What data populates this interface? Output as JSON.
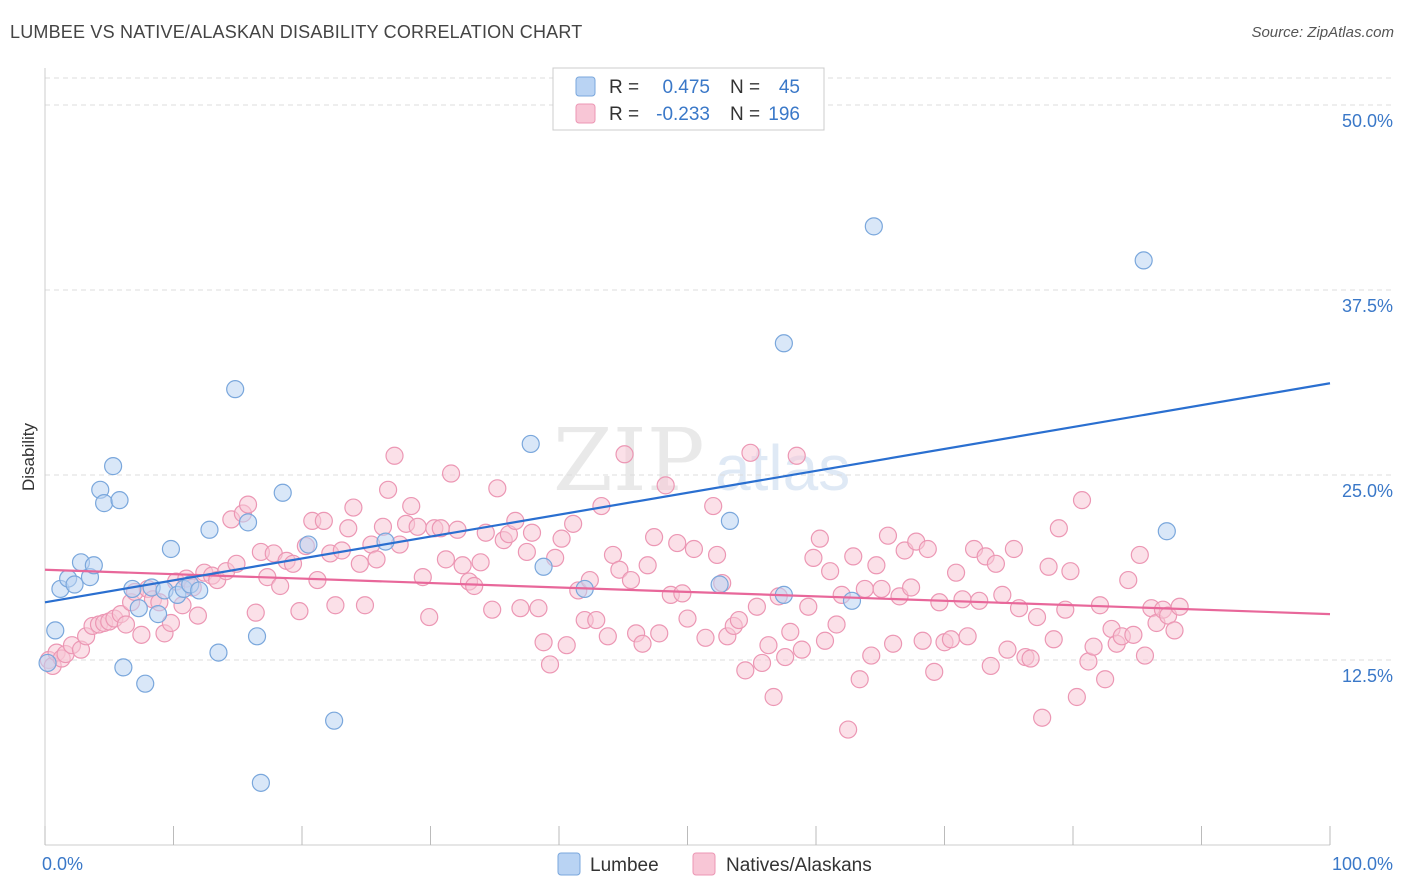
{
  "header": {
    "title": "LUMBEE VS NATIVE/ALASKAN DISABILITY CORRELATION CHART",
    "source": "Source: ZipAtlas.com"
  },
  "watermark": {
    "part1": "ZIP",
    "part2": "atlas"
  },
  "colors": {
    "lumbee_fill": "#b9d3f3",
    "lumbee_stroke": "#7aa7dc",
    "lumbee_line": "#2a6fd0",
    "natives_fill": "#f8c6d6",
    "natives_stroke": "#ec97b4",
    "natives_line": "#e8679a",
    "axis_text": "#3a78c8",
    "grid": "#dddddd"
  },
  "legend": {
    "rows": [
      {
        "r_label": "R =",
        "r_value": "0.475",
        "n_label": "N =",
        "n_value": "45"
      },
      {
        "r_label": "R =",
        "r_value": "-0.233",
        "n_label": "N =",
        "n_value": "196"
      }
    ]
  },
  "bottom_legend": {
    "items": [
      "Lumbee",
      "Natives/Alaskans"
    ]
  },
  "chart_data": {
    "type": "scatter",
    "xlabel": "",
    "ylabel": "Disability",
    "xlim": [
      0,
      100
    ],
    "ylim": [
      0,
      52.5
    ],
    "x_tick_labels": [
      "0.0%",
      "100.0%"
    ],
    "y_ticks": [
      12.5,
      25.0,
      37.5,
      50.0
    ],
    "y_tick_labels": [
      "12.5%",
      "25.0%",
      "37.5%",
      "50.0%"
    ],
    "grid": "horizontal dashed",
    "legend_position": "top-center",
    "series": [
      {
        "name": "Lumbee",
        "trend": {
          "x": [
            0,
            100
          ],
          "y": [
            16.4,
            31.2
          ]
        },
        "points": [
          [
            0.2,
            12.3
          ],
          [
            0.8,
            14.5
          ],
          [
            1.2,
            17.3
          ],
          [
            1.8,
            18.0
          ],
          [
            2.3,
            17.6
          ],
          [
            2.8,
            19.1
          ],
          [
            3.5,
            18.1
          ],
          [
            3.8,
            18.9
          ],
          [
            4.3,
            24.0
          ],
          [
            4.6,
            23.1
          ],
          [
            5.3,
            25.6
          ],
          [
            5.8,
            23.3
          ],
          [
            6.1,
            12.0
          ],
          [
            6.8,
            17.3
          ],
          [
            7.3,
            16.0
          ],
          [
            7.8,
            10.9
          ],
          [
            8.3,
            17.4
          ],
          [
            8.8,
            15.6
          ],
          [
            9.3,
            17.2
          ],
          [
            9.8,
            20.0
          ],
          [
            10.3,
            16.9
          ],
          [
            10.8,
            17.3
          ],
          [
            11.3,
            17.6
          ],
          [
            12.0,
            17.2
          ],
          [
            12.8,
            21.3
          ],
          [
            13.5,
            13.0
          ],
          [
            14.8,
            30.8
          ],
          [
            15.8,
            21.8
          ],
          [
            16.5,
            14.1
          ],
          [
            16.8,
            4.2
          ],
          [
            18.5,
            23.8
          ],
          [
            20.5,
            20.3
          ],
          [
            22.5,
            8.4
          ],
          [
            26.5,
            20.5
          ],
          [
            37.8,
            27.1
          ],
          [
            38.8,
            18.8
          ],
          [
            42.0,
            17.3
          ],
          [
            52.5,
            17.6
          ],
          [
            53.3,
            21.9
          ],
          [
            57.5,
            16.9
          ],
          [
            57.5,
            33.9
          ],
          [
            62.8,
            16.5
          ],
          [
            64.5,
            41.8
          ],
          [
            87.3,
            21.2
          ],
          [
            85.5,
            39.5
          ]
        ]
      },
      {
        "name": "Natives/Alaskans",
        "trend": {
          "x": [
            0,
            100
          ],
          "y": [
            18.6,
            15.6
          ]
        },
        "points": [
          [
            0.3,
            12.5
          ],
          [
            0.6,
            12.1
          ],
          [
            0.9,
            13.0
          ],
          [
            1.3,
            12.6
          ],
          [
            1.6,
            12.9
          ],
          [
            2.1,
            13.5
          ],
          [
            2.8,
            13.2
          ],
          [
            3.2,
            14.1
          ],
          [
            3.7,
            14.8
          ],
          [
            4.2,
            14.9
          ],
          [
            4.6,
            15.0
          ],
          [
            5.0,
            15.1
          ],
          [
            5.4,
            15.3
          ],
          [
            5.9,
            15.6
          ],
          [
            6.3,
            14.9
          ],
          [
            6.7,
            16.4
          ],
          [
            7.0,
            17.1
          ],
          [
            7.5,
            14.2
          ],
          [
            8.0,
            17.3
          ],
          [
            8.4,
            16.6
          ],
          [
            8.9,
            16.4
          ],
          [
            9.3,
            14.3
          ],
          [
            9.8,
            15.0
          ],
          [
            10.2,
            17.8
          ],
          [
            10.7,
            16.2
          ],
          [
            11.0,
            18.0
          ],
          [
            11.5,
            17.4
          ],
          [
            11.9,
            15.5
          ],
          [
            12.4,
            18.4
          ],
          [
            13.0,
            18.2
          ],
          [
            13.4,
            17.9
          ],
          [
            14.1,
            18.5
          ],
          [
            14.5,
            22.0
          ],
          [
            14.9,
            19.0
          ],
          [
            15.4,
            22.4
          ],
          [
            15.8,
            23.0
          ],
          [
            16.4,
            15.7
          ],
          [
            16.8,
            19.8
          ],
          [
            17.3,
            18.1
          ],
          [
            17.8,
            19.7
          ],
          [
            18.3,
            17.5
          ],
          [
            18.8,
            19.2
          ],
          [
            19.3,
            19.0
          ],
          [
            19.8,
            15.8
          ],
          [
            20.3,
            20.2
          ],
          [
            20.8,
            21.9
          ],
          [
            21.2,
            17.9
          ],
          [
            21.7,
            21.9
          ],
          [
            22.2,
            19.7
          ],
          [
            22.6,
            16.2
          ],
          [
            23.1,
            19.9
          ],
          [
            23.6,
            21.4
          ],
          [
            24.0,
            22.8
          ],
          [
            24.5,
            19.0
          ],
          [
            24.9,
            16.2
          ],
          [
            25.4,
            20.3
          ],
          [
            25.8,
            19.3
          ],
          [
            26.3,
            21.5
          ],
          [
            26.7,
            24.0
          ],
          [
            27.2,
            26.3
          ],
          [
            27.6,
            20.3
          ],
          [
            28.1,
            21.7
          ],
          [
            28.5,
            22.9
          ],
          [
            29.0,
            21.5
          ],
          [
            29.4,
            18.1
          ],
          [
            29.9,
            15.4
          ],
          [
            30.3,
            21.4
          ],
          [
            30.8,
            21.4
          ],
          [
            31.2,
            19.3
          ],
          [
            31.6,
            25.1
          ],
          [
            32.1,
            21.3
          ],
          [
            32.5,
            18.9
          ],
          [
            33.0,
            17.8
          ],
          [
            33.4,
            17.5
          ],
          [
            33.9,
            19.1
          ],
          [
            34.3,
            21.1
          ],
          [
            34.8,
            15.9
          ],
          [
            35.2,
            24.1
          ],
          [
            35.7,
            20.6
          ],
          [
            36.1,
            21.0
          ],
          [
            36.6,
            21.9
          ],
          [
            37.0,
            16.0
          ],
          [
            37.5,
            19.8
          ],
          [
            37.9,
            21.1
          ],
          [
            38.4,
            16.0
          ],
          [
            38.8,
            13.7
          ],
          [
            39.3,
            12.2
          ],
          [
            39.7,
            19.4
          ],
          [
            40.2,
            20.7
          ],
          [
            40.6,
            13.5
          ],
          [
            41.1,
            21.7
          ],
          [
            41.5,
            17.2
          ],
          [
            42.0,
            15.2
          ],
          [
            42.4,
            17.9
          ],
          [
            42.9,
            15.2
          ],
          [
            43.3,
            22.9
          ],
          [
            43.8,
            14.1
          ],
          [
            44.2,
            19.6
          ],
          [
            44.7,
            18.6
          ],
          [
            45.1,
            26.4
          ],
          [
            45.6,
            17.9
          ],
          [
            46.0,
            14.3
          ],
          [
            46.5,
            13.6
          ],
          [
            46.9,
            18.9
          ],
          [
            47.4,
            20.8
          ],
          [
            47.8,
            14.3
          ],
          [
            48.3,
            24.3
          ],
          [
            48.7,
            16.9
          ],
          [
            49.2,
            20.4
          ],
          [
            49.6,
            17.0
          ],
          [
            50.0,
            15.3
          ],
          [
            50.5,
            20.0
          ],
          [
            51.4,
            14.0
          ],
          [
            52.0,
            22.9
          ],
          [
            52.3,
            19.6
          ],
          [
            52.7,
            17.7
          ],
          [
            53.1,
            14.1
          ],
          [
            53.6,
            14.8
          ],
          [
            54.0,
            15.2
          ],
          [
            54.5,
            11.8
          ],
          [
            54.9,
            26.5
          ],
          [
            55.4,
            16.1
          ],
          [
            55.8,
            12.3
          ],
          [
            56.3,
            13.5
          ],
          [
            56.7,
            10.0
          ],
          [
            57.1,
            16.8
          ],
          [
            57.6,
            12.7
          ],
          [
            58.0,
            14.4
          ],
          [
            58.5,
            26.3
          ],
          [
            58.9,
            13.2
          ],
          [
            59.4,
            16.1
          ],
          [
            59.8,
            19.4
          ],
          [
            60.3,
            20.7
          ],
          [
            60.7,
            13.8
          ],
          [
            61.1,
            18.5
          ],
          [
            61.6,
            14.9
          ],
          [
            62.0,
            16.9
          ],
          [
            62.5,
            7.8
          ],
          [
            62.9,
            19.5
          ],
          [
            63.4,
            11.2
          ],
          [
            63.8,
            17.3
          ],
          [
            64.3,
            12.8
          ],
          [
            64.7,
            18.9
          ],
          [
            65.1,
            17.3
          ],
          [
            65.6,
            20.9
          ],
          [
            66.0,
            13.6
          ],
          [
            66.5,
            16.8
          ],
          [
            66.9,
            19.9
          ],
          [
            67.4,
            17.4
          ],
          [
            67.8,
            20.5
          ],
          [
            68.3,
            13.8
          ],
          [
            68.7,
            20.0
          ],
          [
            69.2,
            11.7
          ],
          [
            69.6,
            16.4
          ],
          [
            70.0,
            13.7
          ],
          [
            70.5,
            13.9
          ],
          [
            70.9,
            18.4
          ],
          [
            71.4,
            16.6
          ],
          [
            71.8,
            14.1
          ],
          [
            72.3,
            20.0
          ],
          [
            72.7,
            16.5
          ],
          [
            73.2,
            19.5
          ],
          [
            73.6,
            12.1
          ],
          [
            74.0,
            19.0
          ],
          [
            74.5,
            16.9
          ],
          [
            74.9,
            13.2
          ],
          [
            75.4,
            20.0
          ],
          [
            75.8,
            16.0
          ],
          [
            76.3,
            12.7
          ],
          [
            76.7,
            12.6
          ],
          [
            77.2,
            15.4
          ],
          [
            77.6,
            8.6
          ],
          [
            78.1,
            18.8
          ],
          [
            78.5,
            13.9
          ],
          [
            78.9,
            21.4
          ],
          [
            79.4,
            15.9
          ],
          [
            79.8,
            18.5
          ],
          [
            80.3,
            10.0
          ],
          [
            80.7,
            23.3
          ],
          [
            81.2,
            12.4
          ],
          [
            81.6,
            13.4
          ],
          [
            82.1,
            16.2
          ],
          [
            82.5,
            11.2
          ],
          [
            83.0,
            14.6
          ],
          [
            83.4,
            13.6
          ],
          [
            83.8,
            14.1
          ],
          [
            84.3,
            17.9
          ],
          [
            84.7,
            14.2
          ],
          [
            85.2,
            19.6
          ],
          [
            85.6,
            12.8
          ],
          [
            86.1,
            16.0
          ],
          [
            86.5,
            15.0
          ],
          [
            87.0,
            15.9
          ],
          [
            87.4,
            15.5
          ],
          [
            87.9,
            14.5
          ],
          [
            88.3,
            16.1
          ]
        ]
      }
    ]
  }
}
